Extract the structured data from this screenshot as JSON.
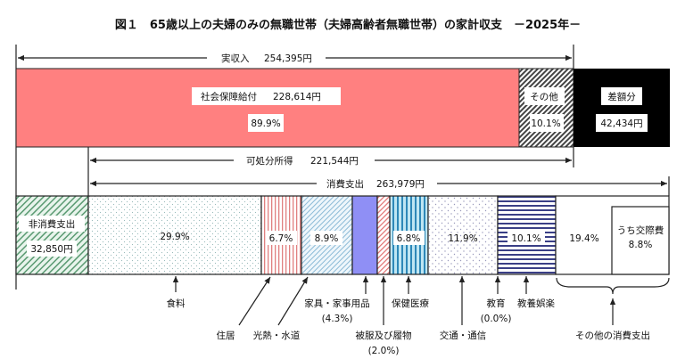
{
  "chart_data": {
    "type": "table",
    "title": "図１　65歳以上の夫婦のみの無職世帯（夫婦高齢者無職世帯）の家計収支　－2025年－",
    "income": {
      "label": "実収入",
      "value": "254,395円",
      "segments": [
        {
          "name": "社会保障給付",
          "amount": "228,614円",
          "percent": "89.9%",
          "pct": 89.9,
          "color": "#ff8080"
        },
        {
          "name": "その他",
          "percent": "10.1%",
          "pct": 10.1,
          "color": "#888888"
        }
      ],
      "deficit": {
        "name": "差額分",
        "amount": "42,434円",
        "color": "#000000"
      }
    },
    "disposable": {
      "label": "可処分所得",
      "value": "221,544円"
    },
    "consumption": {
      "label": "消費支出",
      "value": "263,979円"
    },
    "non_consumption": {
      "name": "非消費支出",
      "amount": "32,850円"
    },
    "expenditure": [
      {
        "name": "食料",
        "percent": "29.9%",
        "pct": 29.9
      },
      {
        "name": "住居",
        "percent": "6.7%",
        "pct": 6.7
      },
      {
        "name": "光熱・水道",
        "percent": "8.9%",
        "pct": 8.9
      },
      {
        "name": "家具・家事用品",
        "percent": "(4.3%)",
        "pct": 4.3
      },
      {
        "name": "被服及び履物",
        "percent": "(2.0%)",
        "pct": 2.0
      },
      {
        "name": "保健医療",
        "percent": "6.8%",
        "pct": 6.8
      },
      {
        "name": "交通・通信",
        "percent": "11.9%",
        "pct": 11.9
      },
      {
        "name": "教育",
        "percent": "(0.0%)",
        "pct": 0.0
      },
      {
        "name": "教養娯楽",
        "percent": "10.1%",
        "pct": 10.1
      },
      {
        "name": "その他の消費支出",
        "percent": "19.4%",
        "pct": 19.4,
        "sub": {
          "name": "うち交際費",
          "percent": "8.8%",
          "pct": 8.8
        }
      }
    ]
  }
}
